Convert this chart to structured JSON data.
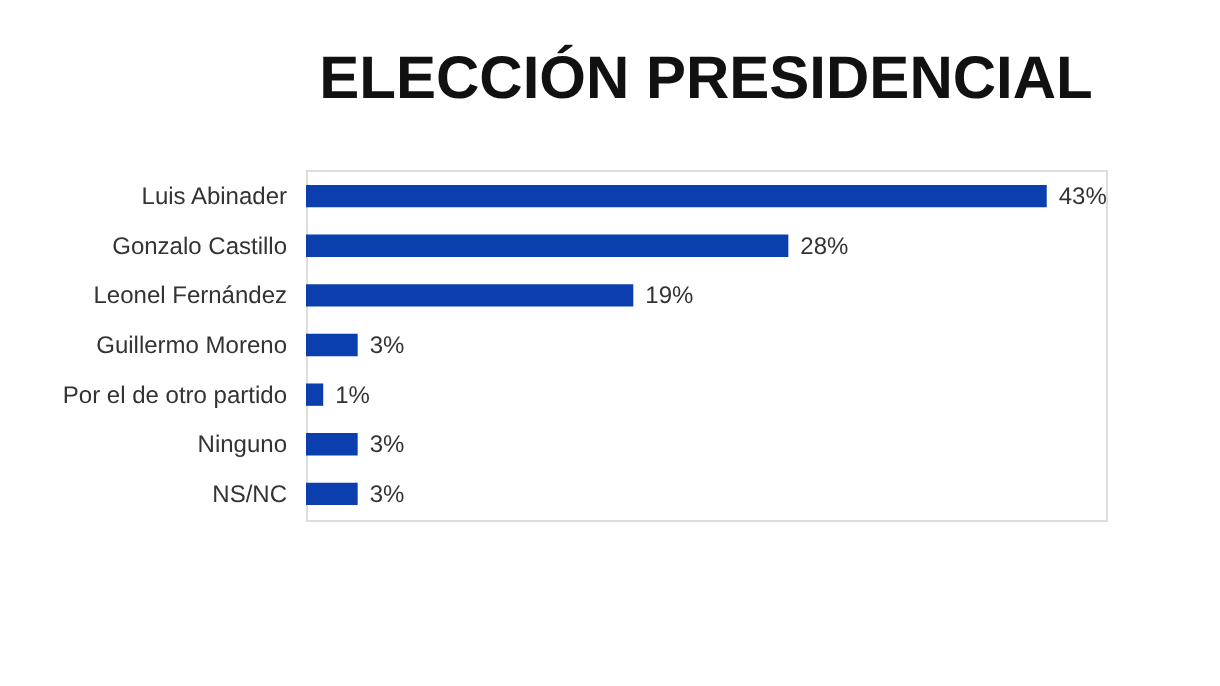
{
  "chart_data": {
    "type": "bar",
    "orientation": "horizontal",
    "title": "ELECCIÓN PRESIDENCIAL",
    "categories": [
      "Luis Abinader",
      "Gonzalo Castillo",
      "Leonel Fernández",
      "Guillermo Moreno",
      "Por el de otro partido",
      "Ninguno",
      "NS/NC"
    ],
    "values": [
      43,
      28,
      19,
      3,
      1,
      3,
      3
    ],
    "value_labels": [
      "43%",
      "28%",
      "19%",
      "3%",
      "1%",
      "3%",
      "3%"
    ],
    "color": "#0b3fae"
  }
}
